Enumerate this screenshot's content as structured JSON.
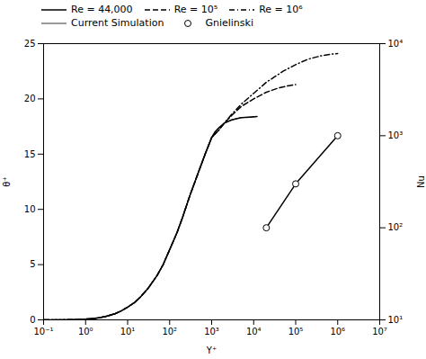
{
  "chart_data": {
    "type": "line",
    "xlabel": "Y⁺",
    "ylabel": "θ⁺",
    "y2label": "Nu",
    "color": "black",
    "log": "x",
    "grid": false,
    "legend": "upper left",
    "xlim": [
      0.1,
      10000000
    ],
    "xticks": [
      {
        "value": 0.1,
        "label": "10⁻¹"
      },
      {
        "value": 1,
        "label": "10⁰"
      },
      {
        "value": 10,
        "label": "10¹"
      },
      {
        "value": 100,
        "label": "10²"
      },
      {
        "value": 1000,
        "label": "10³"
      },
      {
        "value": 10000,
        "label": "10⁴"
      },
      {
        "value": 100000,
        "label": "10⁵"
      },
      {
        "value": 1000000,
        "label": "10⁶"
      },
      {
        "value": 10000000,
        "label": "10⁷"
      }
    ],
    "ylim": [
      0,
      25
    ],
    "yticks": [
      0,
      5,
      10,
      15,
      20,
      25
    ],
    "y2lim": [
      10,
      10000
    ],
    "y2ticks": [
      {
        "value": 10,
        "label": "10¹"
      },
      {
        "value": 100,
        "label": "10²"
      },
      {
        "value": 1000,
        "label": "10³"
      },
      {
        "value": 10000,
        "label": "10⁴"
      }
    ],
    "series": [
      {
        "name": "Re = 44,000",
        "line_style": "solid",
        "x": [
          0.1,
          0.2,
          0.3,
          0.5,
          0.7,
          1.0,
          1.5,
          2.0,
          3.0,
          5.0,
          7.0,
          10,
          15,
          20,
          30,
          50,
          70,
          100,
          150,
          200,
          300,
          500,
          700,
          1000,
          1000,
          1200,
          1500,
          2000,
          3000,
          5000,
          8000,
          12000
        ],
        "values": [
          0.0,
          0.0,
          0.01,
          0.02,
          0.04,
          0.07,
          0.12,
          0.18,
          0.3,
          0.55,
          0.8,
          1.15,
          1.6,
          2.05,
          2.8,
          4.0,
          5.0,
          6.35,
          7.9,
          9.2,
          11.2,
          13.5,
          15.0,
          16.5,
          16.5,
          17.0,
          17.4,
          17.8,
          18.1,
          18.3,
          18.35,
          18.4
        ]
      },
      {
        "name": "Re = 10⁵",
        "line_style": "dashed",
        "x": [
          0.1,
          0.2,
          0.3,
          0.5,
          0.7,
          1.0,
          1.5,
          2.0,
          3.0,
          5.0,
          7.0,
          10,
          15,
          20,
          30,
          50,
          70,
          100,
          150,
          200,
          300,
          500,
          700,
          1000,
          1000,
          1500,
          2000,
          3000,
          5000,
          10000,
          20000,
          40000,
          70000,
          100000
        ],
        "values": [
          0.0,
          0.0,
          0.01,
          0.02,
          0.04,
          0.07,
          0.12,
          0.18,
          0.3,
          0.55,
          0.8,
          1.15,
          1.6,
          2.05,
          2.8,
          4.0,
          5.0,
          6.35,
          7.9,
          9.2,
          11.2,
          13.5,
          15.0,
          16.5,
          16.5,
          17.2,
          17.8,
          18.5,
          19.3,
          20.0,
          20.6,
          21.0,
          21.2,
          21.3
        ]
      },
      {
        "name": "Re = 10⁶",
        "line_style": "dashdot",
        "x": [
          0.1,
          0.2,
          0.3,
          0.5,
          0.7,
          1.0,
          1.5,
          2.0,
          3.0,
          5.0,
          7.0,
          10,
          15,
          20,
          30,
          50,
          70,
          100,
          150,
          200,
          300,
          500,
          700,
          1000,
          1000,
          1500,
          2000,
          3000,
          5000,
          10000,
          20000,
          50000,
          100000,
          200000,
          400000,
          700000,
          1000000
        ],
        "values": [
          0.0,
          0.0,
          0.01,
          0.02,
          0.04,
          0.07,
          0.12,
          0.18,
          0.3,
          0.55,
          0.8,
          1.15,
          1.6,
          2.05,
          2.8,
          4.0,
          5.0,
          6.35,
          7.9,
          9.2,
          11.2,
          13.5,
          15.0,
          16.5,
          16.5,
          17.2,
          17.8,
          18.6,
          19.5,
          20.5,
          21.5,
          22.5,
          23.1,
          23.6,
          23.9,
          24.05,
          24.1
        ]
      },
      {
        "name": "Current Simulation",
        "line_style": "solid",
        "x": [
          0.1,
          0.2,
          0.3,
          0.5,
          0.7,
          1.0,
          1.5,
          2.0,
          3.0,
          5.0,
          7.0,
          10,
          15,
          20,
          30,
          50,
          70,
          100,
          150,
          200,
          300,
          500,
          700,
          1000,
          1000,
          1200,
          1500,
          2000,
          3000,
          5000,
          8000,
          12000
        ],
        "values": [
          0.0,
          0.0,
          0.01,
          0.02,
          0.04,
          0.07,
          0.12,
          0.18,
          0.3,
          0.55,
          0.8,
          1.15,
          1.6,
          2.05,
          2.8,
          4.0,
          5.0,
          6.35,
          7.9,
          9.2,
          11.2,
          13.5,
          15.0,
          16.5,
          16.5,
          17.0,
          17.4,
          17.8,
          18.1,
          18.3,
          18.35,
          18.4
        ]
      },
      {
        "name": "Gnielinski",
        "axis": "y2",
        "line_style": "solid",
        "marker": "circle",
        "x": [
          20000,
          100000,
          1000000
        ],
        "values": [
          100,
          300,
          1000
        ]
      }
    ]
  }
}
